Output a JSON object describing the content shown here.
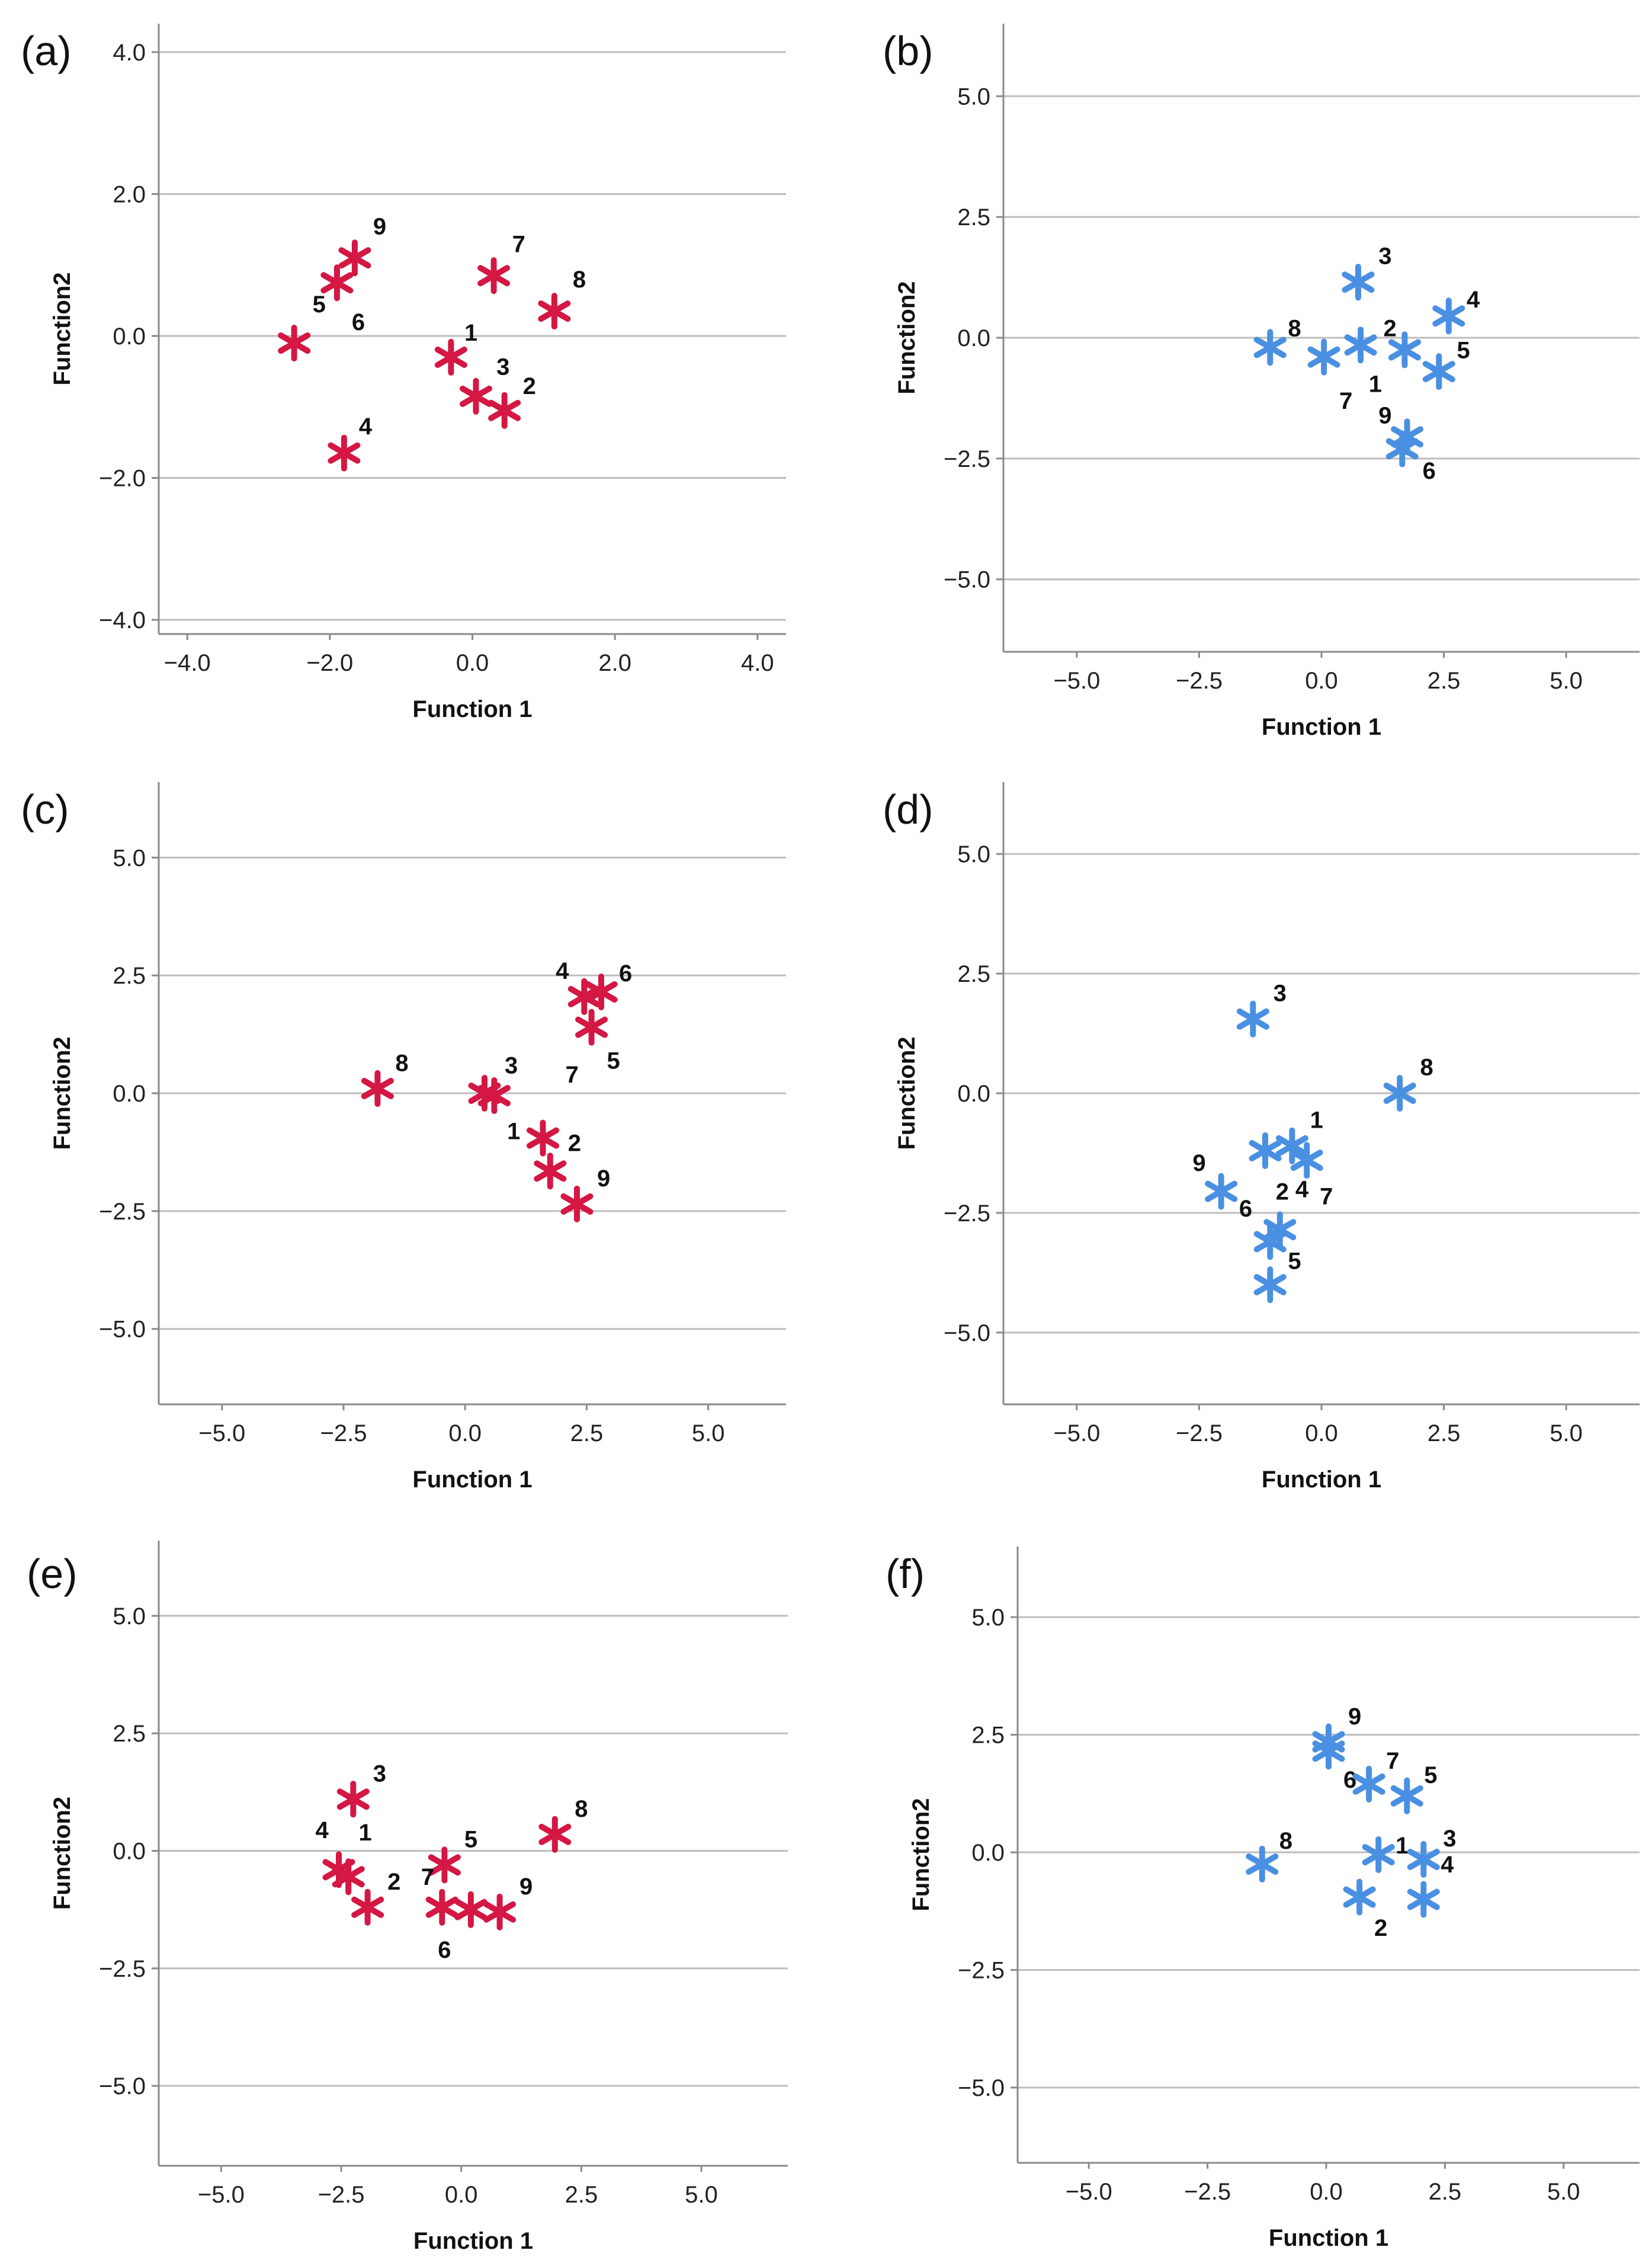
{
  "figure": {
    "panel_count": 6
  },
  "chart_data": [
    {
      "panel": "(a)",
      "type": "scatter",
      "xlabel": "Function 1",
      "ylabel": "Function2",
      "xlim": [
        -4.4,
        4.4
      ],
      "ylim": [
        -4.2,
        4.4
      ],
      "xticks": [
        -4.0,
        -2.0,
        0.0,
        2.0,
        4.0
      ],
      "xtick_labels": [
        "−4.0",
        "−2.0",
        "0.0",
        "2.0",
        "4.0"
      ],
      "yticks": [
        -4.0,
        -2.0,
        0.0,
        2.0,
        4.0
      ],
      "ytick_labels": [
        "−4.0",
        "−2.0",
        "0.0",
        "2.0",
        "4.0"
      ],
      "grid": true,
      "marker_color": "#d41743",
      "points": [
        {
          "label": "1",
          "x": -0.3,
          "y": -0.3,
          "dx": 0.28,
          "dy": 0.35
        },
        {
          "label": "2",
          "x": 0.45,
          "y": -1.05,
          "dx": 0.35,
          "dy": 0.35
        },
        {
          "label": "3",
          "x": 0.05,
          "y": -0.85,
          "dx": 0.38,
          "dy": 0.42
        },
        {
          "label": "4",
          "x": -1.8,
          "y": -1.65,
          "dx": 0.3,
          "dy": 0.38
        },
        {
          "label": "5",
          "x": -2.5,
          "y": -0.1,
          "dx": 0.35,
          "dy": 0.55
        },
        {
          "label": "6",
          "x": -1.9,
          "y": 0.75,
          "dx": 0.3,
          "dy": -0.55
        },
        {
          "label": "7",
          "x": 0.3,
          "y": 0.85,
          "dx": 0.35,
          "dy": 0.45
        },
        {
          "label": "8",
          "x": 1.15,
          "y": 0.35,
          "dx": 0.35,
          "dy": 0.45
        },
        {
          "label": "9",
          "x": -1.65,
          "y": 1.1,
          "dx": 0.35,
          "dy": 0.45
        }
      ]
    },
    {
      "panel": "(b)",
      "type": "scatter",
      "xlabel": "Function 1",
      "ylabel": "Function2",
      "xlim": [
        -6.5,
        6.5
      ],
      "ylim": [
        -6.5,
        6.5
      ],
      "xticks": [
        -5.0,
        -2.5,
        0.0,
        2.5,
        5.0
      ],
      "xtick_labels": [
        "−5.0",
        "−2.5",
        "0.0",
        "2.5",
        "5.0"
      ],
      "yticks": [
        -5.0,
        -2.5,
        0.0,
        2.5,
        5.0
      ],
      "ytick_labels": [
        "−5.0",
        "−2.5",
        "0.0",
        "2.5",
        "5.0"
      ],
      "grid": true,
      "marker_color": "#4a90e2",
      "points": [
        {
          "label": "1",
          "x": 1.7,
          "y": -0.25,
          "dx": -0.6,
          "dy": -0.7
        },
        {
          "label": "2",
          "x": 0.8,
          "y": -0.15,
          "dx": 0.6,
          "dy": 0.35
        },
        {
          "label": "3",
          "x": 0.75,
          "y": 1.15,
          "dx": 0.55,
          "dy": 0.55
        },
        {
          "label": "4",
          "x": 2.6,
          "y": 0.45,
          "dx": 0.5,
          "dy": 0.35
        },
        {
          "label": "5",
          "x": 2.4,
          "y": -0.7,
          "dx": 0.5,
          "dy": 0.45
        },
        {
          "label": "6",
          "x": 1.65,
          "y": -2.3,
          "dx": 0.55,
          "dy": -0.45
        },
        {
          "label": "7",
          "x": 0.05,
          "y": -0.4,
          "dx": 0.45,
          "dy": -0.9
        },
        {
          "label": "8",
          "x": -1.05,
          "y": -0.2,
          "dx": 0.5,
          "dy": 0.4
        },
        {
          "label": "9",
          "x": 1.75,
          "y": -2.05,
          "dx": -0.45,
          "dy": 0.45
        }
      ]
    },
    {
      "panel": "(c)",
      "type": "scatter",
      "xlabel": "Function 1",
      "ylabel": "Function2",
      "xlim": [
        -6.3,
        6.6
      ],
      "ylim": [
        -6.6,
        6.6
      ],
      "xticks": [
        -5.0,
        -2.5,
        0.0,
        2.5,
        5.0
      ],
      "xtick_labels": [
        "−5.0",
        "−2.5",
        "0.0",
        "2.5",
        "5.0"
      ],
      "yticks": [
        -5.0,
        -2.5,
        0.0,
        2.5,
        5.0
      ],
      "ytick_labels": [
        "−5.0",
        "−2.5",
        "0.0",
        "2.5",
        "5.0"
      ],
      "grid": true,
      "marker_color": "#d41743",
      "points": [
        {
          "label": "1",
          "x": 1.6,
          "y": -0.95,
          "dx": -0.6,
          "dy": 0.15
        },
        {
          "label": "2",
          "x": 1.75,
          "y": -1.65,
          "dx": 0.5,
          "dy": 0.6
        },
        {
          "label": "3",
          "x": 0.4,
          "y": 0.0,
          "dx": 0.55,
          "dy": 0.6
        },
        {
          "label": "4",
          "x": 2.45,
          "y": 2.05,
          "dx": -0.45,
          "dy": 0.55
        },
        {
          "label": "5",
          "x": 2.6,
          "y": 1.4,
          "dx": 0.45,
          "dy": -0.7
        },
        {
          "label": "6",
          "x": 2.8,
          "y": 2.15,
          "dx": 0.5,
          "dy": 0.4
        },
        {
          "label": "7",
          "x": 0.6,
          "y": -0.05,
          "dx": 1.6,
          "dy": 0.45
        },
        {
          "label": "8",
          "x": -1.8,
          "y": 0.1,
          "dx": 0.5,
          "dy": 0.55
        },
        {
          "label": "9",
          "x": 2.3,
          "y": -2.35,
          "dx": 0.55,
          "dy": 0.55
        }
      ]
    },
    {
      "panel": "(d)",
      "type": "scatter",
      "xlabel": "Function 1",
      "ylabel": "Function2",
      "xlim": [
        -6.5,
        6.5
      ],
      "ylim": [
        -6.5,
        6.5
      ],
      "xticks": [
        -5.0,
        -2.5,
        0.0,
        2.5,
        5.0
      ],
      "xtick_labels": [
        "−5.0",
        "−2.5",
        "0.0",
        "2.5",
        "5.0"
      ],
      "yticks": [
        -5.0,
        -2.5,
        0.0,
        2.5,
        5.0
      ],
      "ytick_labels": [
        "−5.0",
        "−2.5",
        "0.0",
        "2.5",
        "5.0"
      ],
      "grid": true,
      "marker_color": "#4a90e2",
      "points": [
        {
          "label": "1",
          "x": -0.6,
          "y": -1.1,
          "dx": 0.5,
          "dy": 0.55
        },
        {
          "label": "2",
          "x": -1.15,
          "y": -1.2,
          "dx": 0.35,
          "dy": -0.85
        },
        {
          "label": "3",
          "x": -1.4,
          "y": 1.55,
          "dx": 0.55,
          "dy": 0.55
        },
        {
          "label": "4",
          "x": -0.85,
          "y": -2.85,
          "dx": 0.45,
          "dy": 0.85
        },
        {
          "label": "5",
          "x": -1.05,
          "y": -4.0,
          "dx": 0.5,
          "dy": 0.5
        },
        {
          "label": "6",
          "x": -1.05,
          "y": -3.1,
          "dx": -0.5,
          "dy": 0.7
        },
        {
          "label": "7",
          "x": -0.3,
          "y": -1.4,
          "dx": 0.4,
          "dy": -0.75
        },
        {
          "label": "8",
          "x": 1.6,
          "y": 0.0,
          "dx": 0.55,
          "dy": 0.55
        },
        {
          "label": "9",
          "x": -2.05,
          "y": -2.05,
          "dx": -0.45,
          "dy": 0.6
        }
      ]
    },
    {
      "panel": "(e)",
      "type": "scatter",
      "xlabel": "Function 1",
      "ylabel": "Function2",
      "xlim": [
        -6.3,
        6.8
      ],
      "ylim": [
        -6.7,
        6.6
      ],
      "xticks": [
        -5.0,
        -2.5,
        0.0,
        2.5,
        5.0
      ],
      "xtick_labels": [
        "−5.0",
        "−2.5",
        "0.0",
        "2.5",
        "5.0"
      ],
      "yticks": [
        -5.0,
        -2.5,
        0.0,
        2.5,
        5.0
      ],
      "ytick_labels": [
        "−5.0",
        "−2.5",
        "0.0",
        "2.5",
        "5.0"
      ],
      "grid": true,
      "marker_color": "#d41743",
      "points": [
        {
          "label": "1",
          "x": -2.35,
          "y": -0.55,
          "dx": 0.35,
          "dy": 0.95
        },
        {
          "label": "2",
          "x": -1.95,
          "y": -1.2,
          "dx": 0.55,
          "dy": 0.55
        },
        {
          "label": "3",
          "x": -2.25,
          "y": 1.1,
          "dx": 0.55,
          "dy": 0.55
        },
        {
          "label": "4",
          "x": -2.55,
          "y": -0.4,
          "dx": -0.35,
          "dy": 0.85
        },
        {
          "label": "5",
          "x": -0.35,
          "y": -0.3,
          "dx": 0.55,
          "dy": 0.55
        },
        {
          "label": "6",
          "x": -0.4,
          "y": -1.2,
          "dx": 0.05,
          "dy": -0.9
        },
        {
          "label": "7",
          "x": 0.2,
          "y": -1.25,
          "dx": -0.9,
          "dy": 0.7
        },
        {
          "label": "8",
          "x": 1.95,
          "y": 0.35,
          "dx": 0.55,
          "dy": 0.55
        },
        {
          "label": "9",
          "x": 0.8,
          "y": -1.3,
          "dx": 0.55,
          "dy": 0.55
        }
      ]
    },
    {
      "panel": "(f)",
      "type": "scatter",
      "xlabel": "Function 1",
      "ylabel": "Function2",
      "xlim": [
        -6.5,
        6.6
      ],
      "ylim": [
        -6.6,
        6.5
      ],
      "xticks": [
        -5.0,
        -2.5,
        0.0,
        2.5,
        5.0
      ],
      "xtick_labels": [
        "−5.0",
        "−2.5",
        "0.0",
        "2.5",
        "5.0"
      ],
      "yticks": [
        -5.0,
        -2.5,
        0.0,
        2.5,
        5.0
      ],
      "ytick_labels": [
        "−5.0",
        "−2.5",
        "0.0",
        "2.5",
        "5.0"
      ],
      "grid": true,
      "marker_color": "#4a90e2",
      "points": [
        {
          "label": "1",
          "x": 1.1,
          "y": -0.05,
          "dx": 0.5,
          "dy": 0.2
        },
        {
          "label": "2",
          "x": 0.7,
          "y": -0.95,
          "dx": 0.45,
          "dy": -0.65
        },
        {
          "label": "3",
          "x": 2.05,
          "y": -0.15,
          "dx": 0.55,
          "dy": 0.45
        },
        {
          "label": "4",
          "x": 2.05,
          "y": -1.0,
          "dx": 0.5,
          "dy": 0.75
        },
        {
          "label": "5",
          "x": 1.7,
          "y": 1.2,
          "dx": 0.5,
          "dy": 0.45
        },
        {
          "label": "6",
          "x": 0.05,
          "y": 2.15,
          "dx": 0.45,
          "dy": -0.6
        },
        {
          "label": "7",
          "x": 0.9,
          "y": 1.45,
          "dx": 0.5,
          "dy": 0.5
        },
        {
          "label": "8",
          "x": -1.35,
          "y": -0.25,
          "dx": 0.5,
          "dy": 0.5
        },
        {
          "label": "9",
          "x": 0.05,
          "y": 2.35,
          "dx": 0.55,
          "dy": 0.55
        }
      ]
    }
  ]
}
